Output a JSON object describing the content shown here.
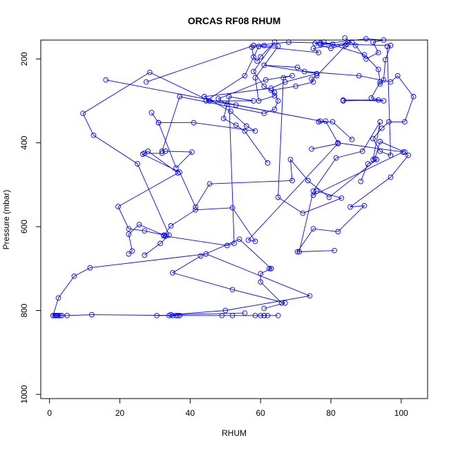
{
  "chart_data": {
    "type": "line",
    "title": "ORCAS RF08 RHUM",
    "xlabel": "RHUM",
    "ylabel": "Pressure (mbar)",
    "xlim": [
      -2.5,
      107.5
    ],
    "ylim": [
      1010,
      155
    ],
    "y_inverted": true,
    "grid": false,
    "xticks": [
      0,
      20,
      40,
      60,
      80,
      100
    ],
    "yticks": [
      200,
      400,
      600,
      800,
      1000
    ],
    "colors": {
      "series": "#0000ff",
      "axes": "#000000"
    },
    "series": [
      {
        "x": [
          1,
          2,
          1.5,
          2.5,
          3,
          1.8,
          2.2,
          3.5,
          5,
          12,
          37,
          35,
          36,
          61,
          52,
          65,
          62,
          36.5,
          30.5,
          34,
          60,
          58.5,
          49,
          61
        ],
        "y": [
          812,
          812,
          812,
          812,
          812,
          812,
          812,
          812,
          812,
          810,
          812,
          812,
          812,
          812,
          812,
          812,
          812,
          812,
          812,
          812,
          812,
          812,
          812,
          812
        ]
      },
      {
        "x": [
          1,
          2.5,
          7,
          11.5,
          44.5,
          74,
          50,
          34.5,
          55.5
        ],
        "y": [
          812,
          770,
          718,
          698,
          665,
          765,
          800,
          810,
          806
        ]
      },
      {
        "x": [
          61,
          67,
          52,
          35,
          43,
          54,
          63,
          62.5,
          63,
          60,
          60,
          66
        ],
        "y": [
          795,
          782,
          750,
          710,
          670,
          630,
          700,
          700,
          700,
          712,
          732,
          782
        ]
      },
      {
        "x": [
          22.5,
          23.5,
          22.5,
          25.5,
          33,
          32.5,
          27,
          22.5,
          19.5,
          36.5,
          28,
          26.5,
          37,
          41.5,
          45.5,
          69,
          68.5,
          73.5,
          79.5,
          93,
          90.5,
          88.5
        ],
        "y": [
          665,
          658,
          618,
          595,
          622,
          620,
          610,
          605,
          552,
          472,
          420,
          427,
          470,
          553,
          498,
          490,
          440,
          490,
          530,
          440,
          450,
          492
        ]
      },
      {
        "x": [
          81,
          70.5,
          75,
          82,
          89.5,
          85.5,
          97,
          102,
          101,
          94,
          92.5,
          92,
          94,
          89,
          81.5,
          75,
          71
        ],
        "y": [
          657,
          660,
          605,
          612,
          550,
          553,
          482,
          430,
          422,
          397,
          438,
          440,
          350,
          420,
          436,
          515,
          660
        ]
      },
      {
        "x": [
          62,
          55.5,
          53,
          49.5,
          50.5,
          48,
          61.5,
          69,
          66.5,
          65,
          72,
          83,
          76,
          75,
          100.5,
          82,
          78.5,
          76.5,
          80.5,
          86
        ],
        "y": [
          448,
          372,
          358,
          342,
          308,
          295,
          250,
          240,
          245,
          530,
          568,
          532,
          515,
          525,
          422,
          400,
          348,
          350,
          350,
          392
        ]
      },
      {
        "x": [
          27,
          31.5,
          34,
          25,
          12.5,
          9.5,
          28.5,
          45.5,
          58,
          51,
          52.5,
          50.5,
          32.5,
          34.5,
          41.5,
          52,
          58.5,
          56.5,
          82,
          74.5
        ],
        "y": [
          668,
          640,
          620,
          450,
          382,
          330,
          232,
          300,
          300,
          290,
          640,
          645,
          622,
          598,
          560,
          555,
          635,
          632,
          402,
          415
        ]
      },
      {
        "x": [
          27,
          32,
          33,
          40.5,
          36,
          31,
          29,
          31,
          41,
          58.5,
          56,
          51.5,
          44,
          63,
          67,
          76,
          61,
          70.5,
          72.5,
          88,
          97,
          99,
          103.5,
          101,
          96.5,
          94.5,
          92,
          94,
          97,
          96
        ],
        "y": [
          425,
          425,
          420,
          422,
          460,
          352,
          328,
          352,
          352,
          372,
          360,
          325,
          290,
          270,
          255,
          235,
          215,
          220,
          230,
          240,
          255,
          240,
          290,
          350,
          350,
          365,
          390,
          420,
          430,
          170
        ]
      },
      {
        "x": [
          32,
          37,
          61,
          64,
          65,
          64,
          61,
          58,
          64,
          60,
          59,
          58,
          57.5,
          61,
          65,
          58.5,
          59.5,
          64,
          63,
          70,
          75,
          74.5,
          76,
          84.5,
          97,
          95.5,
          95,
          94
        ],
        "y": [
          420,
          290,
          330,
          320,
          300,
          280,
          265,
          230,
          160,
          195,
          205,
          195,
          172,
          168,
          170,
          245,
          300,
          288,
          275,
          265,
          255,
          248,
          240,
          165,
          168,
          202,
          250,
          260
        ]
      },
      {
        "x": [
          16,
          77,
          53,
          44.5,
          55.5,
          59.5,
          76.5,
          75,
          86,
          80,
          75.5,
          78,
          89.5,
          93.5,
          94,
          91.5,
          95,
          83.5,
          93.5,
          83.5
        ],
        "y": [
          250,
          348,
          310,
          300,
          240,
          170,
          185,
          175,
          160,
          175,
          163,
          160,
          190,
          225,
          255,
          293,
          300,
          298,
          298,
          300
        ]
      },
      {
        "x": [
          27.5,
          58,
          68,
          77,
          84,
          80.5,
          77,
          90,
          95,
          92,
          93.5,
          90,
          87,
          84
        ],
        "y": [
          255,
          168,
          160,
          162,
          168,
          165,
          165,
          152,
          155,
          160,
          185,
          200,
          168,
          150
        ]
      }
    ]
  }
}
